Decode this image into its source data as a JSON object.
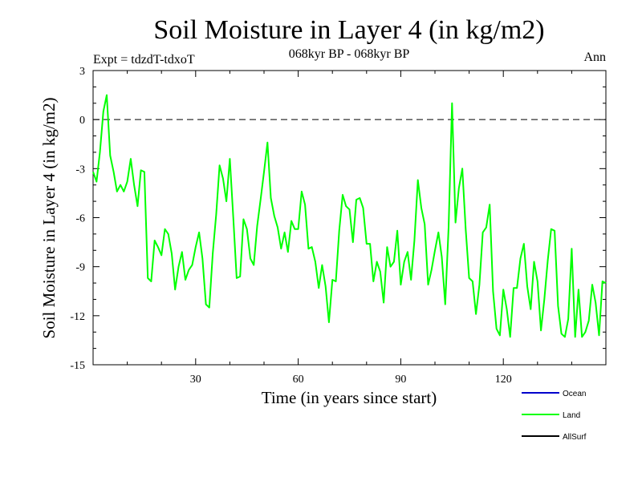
{
  "chart_data": {
    "type": "line",
    "title": "Soil Moisture in Layer 4 (in kg/m2)",
    "subtitle": "068kyr BP - 068kyr BP",
    "expt_label": "Expt = tdzdT-tdxoT",
    "period_label": "Ann",
    "xlabel": "Time (in years since start)",
    "ylabel": "Soil Moisture in Layer 4 (in kg/m2)",
    "xlim": [
      0,
      150
    ],
    "ylim": [
      -15,
      3
    ],
    "xticks": [
      30,
      60,
      90,
      120
    ],
    "yticks": [
      3,
      0,
      -3,
      -6,
      -9,
      -12,
      -15
    ],
    "reference_line": 0,
    "legend": [
      {
        "name": "Ocean",
        "color": "#0000cc"
      },
      {
        "name": "Land",
        "color": "#00ff00"
      },
      {
        "name": "AllSurf",
        "color": "#000000"
      }
    ],
    "series": [
      {
        "name": "Land",
        "color": "#00ff00",
        "x": [
          0,
          1,
          2,
          3,
          4,
          5,
          6,
          7,
          8,
          9,
          10,
          11,
          12,
          13,
          14,
          15,
          16,
          17,
          18,
          19,
          20,
          21,
          22,
          23,
          24,
          25,
          26,
          27,
          28,
          29,
          30,
          31,
          32,
          33,
          34,
          35,
          36,
          37,
          38,
          39,
          40,
          41,
          42,
          43,
          44,
          45,
          46,
          47,
          48,
          49,
          50,
          51,
          52,
          53,
          54,
          55,
          56,
          57,
          58,
          59,
          60,
          61,
          62,
          63,
          64,
          65,
          66,
          67,
          68,
          69,
          70,
          71,
          72,
          73,
          74,
          75,
          76,
          77,
          78,
          79,
          80,
          81,
          82,
          83,
          84,
          85,
          86,
          87,
          88,
          89,
          90,
          91,
          92,
          93,
          94,
          95,
          96,
          97,
          98,
          99,
          100,
          101,
          102,
          103,
          104,
          105,
          106,
          107,
          108,
          109,
          110,
          111,
          112,
          113,
          114,
          115,
          116,
          117,
          118,
          119,
          120,
          121,
          122,
          123,
          124,
          125,
          126,
          127,
          128,
          129,
          130,
          131,
          132,
          133,
          134,
          135,
          136,
          137,
          138,
          139,
          140,
          141,
          142,
          143,
          144,
          145,
          146,
          147,
          148,
          149,
          150
        ],
        "values": [
          -3.2,
          -3.8,
          -2.0,
          0.5,
          1.5,
          -2.2,
          -3.2,
          -4.4,
          -4.0,
          -4.4,
          -3.8,
          -2.4,
          -4.0,
          -5.3,
          -3.1,
          -3.2,
          -9.7,
          -9.9,
          -7.4,
          -7.8,
          -8.3,
          -6.7,
          -7.0,
          -8.2,
          -10.4,
          -9.0,
          -8.1,
          -9.8,
          -9.2,
          -8.9,
          -7.8,
          -6.9,
          -8.5,
          -11.3,
          -11.5,
          -8.2,
          -5.8,
          -2.8,
          -3.6,
          -5.0,
          -2.4,
          -6.0,
          -9.7,
          -9.6,
          -6.1,
          -6.7,
          -8.5,
          -8.9,
          -6.5,
          -4.9,
          -3.2,
          -1.4,
          -4.8,
          -5.9,
          -6.6,
          -7.9,
          -6.9,
          -8.1,
          -6.2,
          -6.7,
          -6.7,
          -4.4,
          -5.2,
          -7.9,
          -7.8,
          -8.7,
          -10.3,
          -8.9,
          -10.2,
          -12.4,
          -9.8,
          -9.9,
          -6.8,
          -4.6,
          -5.3,
          -5.5,
          -7.5,
          -4.9,
          -4.8,
          -5.4,
          -7.6,
          -7.6,
          -9.9,
          -8.7,
          -9.3,
          -11.2,
          -7.8,
          -9.0,
          -8.7,
          -6.8,
          -10.1,
          -8.7,
          -8.1,
          -9.8,
          -7.4,
          -3.7,
          -5.4,
          -6.4,
          -10.1,
          -9.2,
          -8.0,
          -6.9,
          -8.4,
          -11.3,
          -6.6,
          1.0,
          -6.3,
          -4.2,
          -3.0,
          -6.7,
          -9.7,
          -9.9,
          -11.9,
          -10.1,
          -6.9,
          -6.6,
          -5.2,
          -10.5,
          -12.8,
          -13.2,
          -10.4,
          -11.6,
          -13.3,
          -10.3,
          -10.3,
          -8.5,
          -7.6,
          -10.2,
          -11.6,
          -8.7,
          -9.9,
          -12.9,
          -11.0,
          -8.6,
          -6.7,
          -6.8,
          -11.4,
          -13.1,
          -13.3,
          -12.2,
          -7.9,
          -13.3,
          -10.4,
          -13.3,
          -13.0,
          -12.3,
          -10.1,
          -11.2,
          -13.2,
          -9.9,
          -10.0
        ]
      }
    ]
  }
}
